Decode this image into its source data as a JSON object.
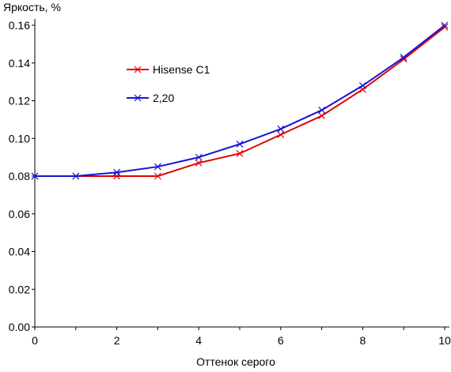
{
  "chart_data": {
    "type": "line",
    "title": "",
    "xlabel": "Оттенок серого",
    "ylabel": "Яркость, %",
    "xlim": [
      0,
      10
    ],
    "ylim": [
      0,
      0.16
    ],
    "x_ticks": [
      "0",
      "2",
      "4",
      "6",
      "8",
      "10"
    ],
    "y_ticks": [
      "0.00",
      "0.02",
      "0.04",
      "0.06",
      "0.08",
      "0.10",
      "0.12",
      "0.14",
      "0.16"
    ],
    "grid": false,
    "legend_position": "upper-left inside plot",
    "x": [
      0,
      1,
      2,
      3,
      4,
      5,
      6,
      7,
      8,
      9,
      10
    ],
    "series": [
      {
        "name": "Hisense C1",
        "color": "#e00000",
        "marker": "x",
        "values": [
          0.08,
          0.08,
          0.08,
          0.08,
          0.087,
          0.092,
          0.102,
          0.112,
          0.126,
          0.142,
          0.159
        ]
      },
      {
        "name": "2,20",
        "color": "#1414d2",
        "marker": "x",
        "values": [
          0.08,
          0.08,
          0.082,
          0.085,
          0.09,
          0.097,
          0.105,
          0.115,
          0.128,
          0.143,
          0.16
        ]
      }
    ]
  }
}
